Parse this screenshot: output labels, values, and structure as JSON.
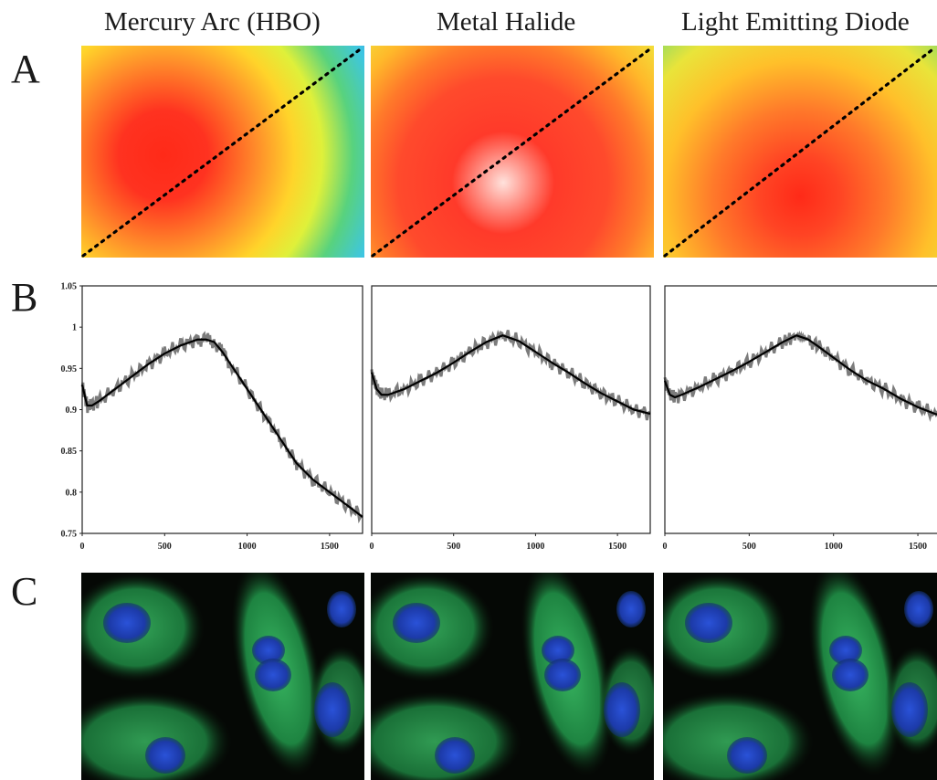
{
  "figure": {
    "columns": [
      {
        "title": "Mercury Arc (HBO)"
      },
      {
        "title": "Metal Halide"
      },
      {
        "title": "Light Emitting Diode"
      }
    ],
    "row_labels": [
      "A",
      "B",
      "C"
    ]
  },
  "heatmaps": [
    {
      "stops": [
        "#ff2a18",
        "#ff3220",
        "#ff8a2a",
        "#ffd42a",
        "#dff03a",
        "#58d27e",
        "#3ec6e2",
        "#2c8fdc",
        "#4a2e9a"
      ]
    },
    {
      "stops": [
        "#ffe2dc",
        "#ff3a2a",
        "#ff4a2c",
        "#ff7a2a",
        "#ffb82a",
        "#f2e03a",
        "#d6ea3a"
      ]
    },
    {
      "stops": [
        "#ff2a18",
        "#ff4424",
        "#ff7a2a",
        "#ffc02a",
        "#e9e43a",
        "#7ed86a"
      ]
    }
  ],
  "chart_data": [
    {
      "type": "line",
      "title": "",
      "xlabel": "",
      "ylabel": "",
      "xlim": [
        0,
        1700
      ],
      "ylim": [
        0.75,
        1.05
      ],
      "x_ticks": [
        "0",
        "500",
        "1000",
        "1500"
      ],
      "y_ticks": [
        "0.75",
        "0.8",
        "0.85",
        "0.9",
        "0.95",
        "1",
        "1.05"
      ],
      "series": [
        {
          "x": [
            0,
            30,
            60,
            100,
            200,
            300,
            400,
            500,
            600,
            700,
            750,
            800,
            850,
            900,
            1000,
            1100,
            1200,
            1300,
            1400,
            1500,
            1600,
            1700
          ],
          "y": [
            0.93,
            0.905,
            0.905,
            0.91,
            0.925,
            0.94,
            0.955,
            0.968,
            0.978,
            0.985,
            0.985,
            0.982,
            0.97,
            0.955,
            0.925,
            0.895,
            0.865,
            0.835,
            0.815,
            0.8,
            0.785,
            0.77
          ]
        }
      ]
    },
    {
      "type": "line",
      "title": "",
      "xlabel": "",
      "ylabel": "",
      "xlim": [
        0,
        1700
      ],
      "ylim": [
        0.75,
        1.05
      ],
      "x_ticks": [
        "0",
        "500",
        "1000",
        "1500"
      ],
      "y_ticks": [],
      "series": [
        {
          "x": [
            0,
            30,
            60,
            100,
            200,
            300,
            400,
            500,
            600,
            700,
            800,
            900,
            1000,
            1100,
            1200,
            1300,
            1400,
            1500,
            1600,
            1700
          ],
          "y": [
            0.945,
            0.925,
            0.918,
            0.918,
            0.925,
            0.935,
            0.945,
            0.957,
            0.97,
            0.982,
            0.99,
            0.983,
            0.97,
            0.957,
            0.945,
            0.932,
            0.92,
            0.91,
            0.9,
            0.895
          ]
        }
      ]
    },
    {
      "type": "line",
      "title": "",
      "xlabel": "",
      "ylabel": "",
      "xlim": [
        0,
        1700
      ],
      "ylim": [
        0.75,
        1.05
      ],
      "x_ticks": [
        "0",
        "500",
        "1000",
        "1500"
      ],
      "y_ticks": [],
      "series": [
        {
          "x": [
            0,
            30,
            60,
            100,
            200,
            300,
            400,
            500,
            600,
            700,
            780,
            850,
            900,
            1000,
            1100,
            1200,
            1300,
            1400,
            1500,
            1600,
            1700
          ],
          "y": [
            0.935,
            0.918,
            0.915,
            0.918,
            0.927,
            0.937,
            0.947,
            0.958,
            0.97,
            0.982,
            0.99,
            0.985,
            0.978,
            0.963,
            0.948,
            0.935,
            0.925,
            0.913,
            0.903,
            0.895,
            0.89
          ]
        }
      ]
    }
  ]
}
